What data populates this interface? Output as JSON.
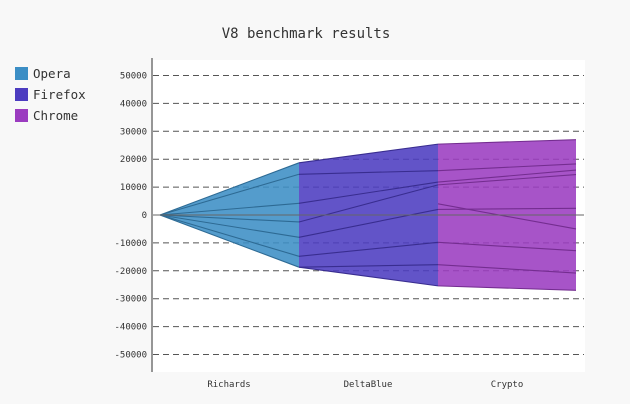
{
  "chart_data": {
    "type": "area",
    "title": "V8 benchmark results",
    "categories": [
      "Richards",
      "DeltaBlue",
      "Crypto"
    ],
    "ylim": [
      -55000,
      55000
    ],
    "yticks": [
      50000,
      40000,
      30000,
      20000,
      10000,
      0,
      -10000,
      -20000,
      -30000,
      -40000,
      -50000
    ],
    "ytick_labels": [
      "50000",
      "40000",
      "30000",
      "20000",
      "10000",
      "0",
      "-10000",
      "-20000",
      "-30000",
      "-40000",
      "-50000"
    ],
    "grid": true,
    "legend_position": "top-left",
    "series": [
      {
        "name": "Opera",
        "color": "#3c8ec5",
        "boundaries": [
          [
            0,
            18700
          ],
          [
            0,
            14600
          ],
          [
            0,
            4200
          ],
          [
            0,
            -2500
          ],
          [
            0,
            -8000
          ],
          [
            0,
            -14800
          ],
          [
            0,
            -18700
          ]
        ]
      },
      {
        "name": "Firefox",
        "color": "#4c3cc0",
        "boundaries": [
          [
            18700,
            25400
          ],
          [
            14600,
            15900
          ],
          [
            4200,
            11800
          ],
          [
            -2500,
            10800
          ],
          [
            -8000,
            2000
          ],
          [
            -14800,
            -9800
          ],
          [
            -18700,
            -17800
          ],
          [
            -18700,
            -25400
          ]
        ]
      },
      {
        "name": "Chrome",
        "color": "#9b3cc0",
        "boundaries": [
          [
            25400,
            27000
          ],
          [
            15900,
            18300
          ],
          [
            11800,
            16100
          ],
          [
            10800,
            14500
          ],
          [
            2000,
            2400
          ],
          [
            4000,
            -5000
          ],
          [
            -9800,
            -12800
          ],
          [
            -17800,
            -20800
          ],
          [
            -25400,
            -27000
          ]
        ]
      }
    ]
  }
}
